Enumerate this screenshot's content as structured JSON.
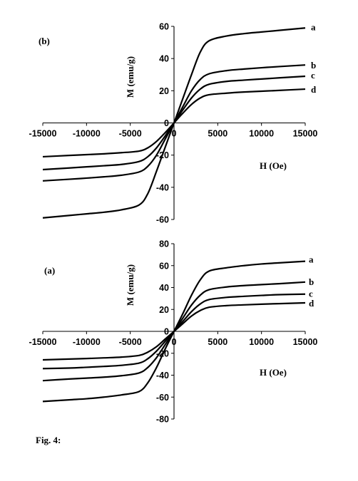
{
  "caption": "Fig. 4:",
  "chart_data": [
    {
      "type": "line",
      "panel_label": "(b)",
      "xlabel": "H (Oe)",
      "ylabel": "M (emu/g)",
      "xlim": [
        -15000,
        15000
      ],
      "ylim": [
        -60,
        60
      ],
      "xticks": [
        -15000,
        -10000,
        -5000,
        0,
        5000,
        10000,
        15000
      ],
      "yticks": [
        -60,
        -40,
        -20,
        0,
        20,
        40,
        60
      ],
      "grid": false,
      "legend": "none",
      "series": [
        {
          "label": "a",
          "x": [
            0,
            1000,
            2000,
            3000,
            4000,
            6000,
            8000,
            10000,
            12000,
            15000
          ],
          "y": [
            0,
            15,
            30,
            44,
            51,
            54,
            55.5,
            56.5,
            57.5,
            59
          ]
        },
        {
          "label": "b",
          "x": [
            0,
            1000,
            2000,
            3000,
            4000,
            6000,
            8000,
            10000,
            12000,
            15000
          ],
          "y": [
            0,
            10,
            20,
            27,
            30.5,
            32.5,
            33.5,
            34.3,
            35,
            36
          ]
        },
        {
          "label": "c",
          "x": [
            0,
            1000,
            2000,
            3000,
            4000,
            6000,
            8000,
            10000,
            12000,
            15000
          ],
          "y": [
            0,
            8,
            15.5,
            21,
            24,
            25.8,
            26.6,
            27.3,
            28,
            29
          ]
        },
        {
          "label": "d",
          "x": [
            0,
            1000,
            2000,
            3000,
            4000,
            6000,
            8000,
            10000,
            12000,
            15000
          ],
          "y": [
            0,
            6,
            11.5,
            15.5,
            17.5,
            18.5,
            19.2,
            19.7,
            20.2,
            21
          ]
        }
      ]
    },
    {
      "type": "line",
      "panel_label": "(a)",
      "xlabel": "H (Oe)",
      "ylabel": "M (emu/g)",
      "xlim": [
        -15000,
        15000
      ],
      "ylim": [
        -80,
        80
      ],
      "xticks": [
        -15000,
        -10000,
        -5000,
        0,
        5000,
        10000,
        15000
      ],
      "yticks": [
        -80,
        -60,
        -40,
        -20,
        0,
        20,
        40,
        60,
        80
      ],
      "grid": false,
      "legend": "none",
      "series": [
        {
          "label": "a",
          "x": [
            0,
            1000,
            2000,
            3000,
            4000,
            6000,
            8000,
            10000,
            12000,
            15000
          ],
          "y": [
            0,
            16,
            33,
            47,
            55,
            58,
            60,
            61.5,
            62.5,
            64
          ]
        },
        {
          "label": "b",
          "x": [
            0,
            1000,
            2000,
            3000,
            4000,
            6000,
            8000,
            10000,
            12000,
            15000
          ],
          "y": [
            0,
            12,
            24,
            33,
            38,
            40.5,
            41.8,
            42.7,
            43.5,
            45
          ]
        },
        {
          "label": "c",
          "x": [
            0,
            1000,
            2000,
            3000,
            4000,
            6000,
            8000,
            10000,
            12000,
            15000
          ],
          "y": [
            0,
            9,
            18,
            25,
            29,
            31,
            32,
            32.8,
            33.5,
            34
          ]
        },
        {
          "label": "d",
          "x": [
            0,
            1000,
            2000,
            3000,
            4000,
            6000,
            8000,
            10000,
            12000,
            15000
          ],
          "y": [
            0,
            7,
            14,
            19,
            22,
            23.5,
            24.2,
            24.8,
            25.3,
            26
          ]
        }
      ]
    }
  ]
}
